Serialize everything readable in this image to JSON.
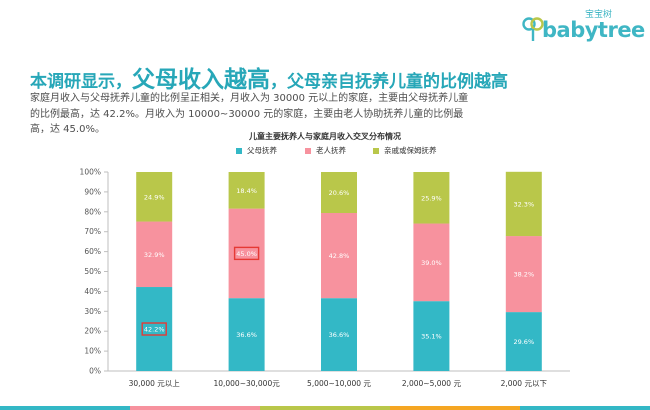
{
  "logo": {
    "cn": "宝宝树",
    "text": "babytree"
  },
  "headline": {
    "part1": "本调研显示，",
    "part2": "父母收入越高",
    "part3": "，父母亲自抚养儿童的比例越高"
  },
  "description": "家庭月收入与父母抚养儿童的比例呈正相关，月收入为 30000 元以上的家庭，主要由父母抚养儿童的比例最高，达 42.2%。月收入为 10000~30000 元的家庭，主要由老人协助抚养儿童的比例最高，达 45.0%。",
  "colors": {
    "parents": "#33b8c6",
    "grandparents": "#f7929e",
    "relatives": "#b9c74a",
    "headline": "#27a7b8",
    "highlight": "#e53935",
    "footer": [
      "#33b8c6",
      "#f7929e",
      "#b9c74a",
      "#f5a623",
      "#33b8c6"
    ]
  },
  "chart_data": {
    "type": "bar",
    "stacked": true,
    "title": "儿童主要抚养人与家庭月收入交叉分布情况",
    "categories": [
      "30,000 元以上",
      "10,000~30,000元",
      "5,000~10,000 元",
      "2,000~5,000 元",
      "2,000 元以下"
    ],
    "series": [
      {
        "name": "父母抚养",
        "values": [
          42.2,
          36.6,
          36.6,
          35.1,
          29.6
        ],
        "labels": [
          "42.2%",
          "36.6%",
          "36.6%",
          "35.1%",
          "29.6%"
        ]
      },
      {
        "name": "老人抚养",
        "values": [
          32.9,
          45.0,
          42.8,
          39.0,
          38.2
        ],
        "labels": [
          "32.9%",
          "45.0%",
          "42.8%",
          "39.0%",
          "38.2%"
        ]
      },
      {
        "name": "亲戚或保姆抚养",
        "values": [
          24.9,
          18.4,
          20.6,
          25.9,
          32.3
        ],
        "labels": [
          "24.9%",
          "18.4%",
          "20.6%",
          "25.9%",
          "32.3%"
        ]
      }
    ],
    "highlighted": [
      {
        "series": 0,
        "category": 0
      },
      {
        "series": 1,
        "category": 1
      }
    ],
    "yticks": [
      "0%",
      "10%",
      "20%",
      "30%",
      "40%",
      "50%",
      "60%",
      "70%",
      "80%",
      "90%",
      "100%"
    ],
    "ylim": [
      0,
      100
    ],
    "grid": false,
    "legend_position": "top"
  }
}
